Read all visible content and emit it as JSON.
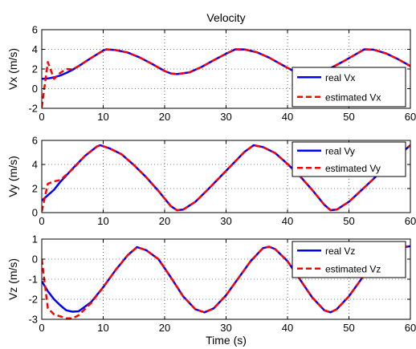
{
  "chart_data": [
    {
      "type": "line",
      "title": "Velocity",
      "xlabel": "",
      "ylabel": "Vx (m/s)",
      "xlim": [
        0,
        60
      ],
      "ylim": [
        -2,
        6
      ],
      "xticks": [
        "0",
        "10",
        "20",
        "30",
        "40",
        "50",
        "60"
      ],
      "yticks": [
        "-2",
        "0",
        "2",
        "4",
        "6"
      ],
      "grid": true,
      "legend_position": "bottom-right",
      "x": [
        0,
        1,
        2,
        3,
        4,
        5,
        6,
        8,
        10,
        10.5,
        12,
        14,
        16,
        18,
        20,
        21,
        22,
        24,
        26,
        28,
        30,
        31.5,
        33,
        35,
        37,
        39,
        41,
        42,
        43,
        45,
        47,
        49,
        51,
        52.5,
        54,
        56,
        58,
        60
      ],
      "series": [
        {
          "name": "real Vx",
          "color": "#0000ff",
          "style": "solid",
          "values": [
            1.0,
            1.04,
            1.15,
            1.34,
            1.6,
            1.92,
            2.29,
            3.11,
            3.88,
            4.0,
            3.93,
            3.67,
            3.16,
            2.5,
            1.8,
            1.55,
            1.48,
            1.65,
            2.2,
            2.9,
            3.55,
            4.0,
            3.99,
            3.71,
            3.16,
            2.46,
            1.78,
            1.52,
            1.45,
            1.6,
            2.08,
            2.74,
            3.45,
            4.0,
            3.97,
            3.6,
            3.0,
            2.3
          ]
        },
        {
          "name": "estimated Vx",
          "color": "#ff0000",
          "style": "dashed",
          "values": [
            -1.9,
            2.7,
            1.0,
            1.6,
            2.0,
            1.95,
            2.3,
            3.11,
            3.88,
            4.0,
            3.93,
            3.67,
            3.16,
            2.5,
            1.8,
            1.55,
            1.48,
            1.65,
            2.2,
            2.9,
            3.55,
            4.0,
            3.99,
            3.71,
            3.16,
            2.46,
            1.78,
            1.52,
            1.45,
            1.6,
            2.08,
            2.74,
            3.45,
            4.0,
            3.97,
            3.6,
            3.0,
            2.3
          ]
        }
      ]
    },
    {
      "type": "line",
      "title": "",
      "xlabel": "",
      "ylabel": "Vy (m/s)",
      "xlim": [
        0,
        60
      ],
      "ylim": [
        0,
        6
      ],
      "xticks": [
        "0",
        "10",
        "20",
        "30",
        "40",
        "50",
        "60"
      ],
      "yticks": [
        "0",
        "2",
        "4",
        "6"
      ],
      "grid": true,
      "legend_position": "top-right",
      "x": [
        0,
        1,
        2,
        3,
        5,
        7,
        9,
        9.5,
        11,
        13,
        15,
        17,
        19,
        21,
        22,
        23,
        25,
        27,
        29,
        31,
        33,
        34.5,
        36,
        38,
        40,
        42,
        44,
        46,
        47,
        48,
        50,
        52,
        54,
        56,
        58,
        60
      ],
      "series": [
        {
          "name": "real Vy",
          "color": "#0000ff",
          "style": "solid",
          "values": [
            1.0,
            1.45,
            1.9,
            2.55,
            3.65,
            4.7,
            5.5,
            5.6,
            5.35,
            4.85,
            3.95,
            2.95,
            1.8,
            0.55,
            0.2,
            0.25,
            0.9,
            1.9,
            2.95,
            4.0,
            5.05,
            5.6,
            5.45,
            4.95,
            4.05,
            3.05,
            1.9,
            0.65,
            0.2,
            0.25,
            0.9,
            1.85,
            2.8,
            3.85,
            4.7,
            5.6
          ]
        },
        {
          "name": "estimated Vy",
          "color": "#ff0000",
          "style": "dashed",
          "values": [
            0.1,
            2.4,
            2.6,
            2.7,
            3.6,
            4.7,
            5.5,
            5.6,
            5.35,
            4.85,
            3.95,
            2.95,
            1.8,
            0.55,
            0.2,
            0.25,
            0.9,
            1.9,
            2.95,
            4.0,
            5.05,
            5.6,
            5.45,
            4.95,
            4.05,
            3.05,
            1.9,
            0.65,
            0.2,
            0.25,
            0.9,
            1.85,
            2.8,
            3.85,
            4.7,
            5.6
          ]
        }
      ]
    },
    {
      "type": "line",
      "title": "",
      "xlabel": "Time (s)",
      "ylabel": "Vz (m/s)",
      "xlim": [
        0,
        60
      ],
      "ylim": [
        -3,
        1
      ],
      "xticks": [
        "0",
        "10",
        "20",
        "30",
        "40",
        "50",
        "60"
      ],
      "yticks": [
        "-3",
        "-2",
        "-1",
        "0",
        "1"
      ],
      "grid": true,
      "legend_position": "top-right",
      "x": [
        0,
        1,
        2,
        3,
        4,
        5,
        6,
        8,
        10,
        12,
        14,
        15.5,
        17,
        19,
        21,
        23,
        25,
        26.5,
        28,
        30,
        32,
        34,
        36,
        37,
        38,
        40,
        42,
        44,
        46,
        47,
        48,
        50,
        52,
        54,
        56,
        58,
        60
      ],
      "series": [
        {
          "name": "real Vz",
          "color": "#0000ff",
          "style": "solid",
          "values": [
            -1.1,
            -1.6,
            -2.0,
            -2.3,
            -2.55,
            -2.62,
            -2.6,
            -2.15,
            -1.4,
            -0.55,
            0.2,
            0.6,
            0.45,
            0.0,
            -0.9,
            -1.85,
            -2.5,
            -2.65,
            -2.45,
            -1.8,
            -0.95,
            -0.1,
            0.55,
            0.62,
            0.5,
            -0.1,
            -1.0,
            -1.9,
            -2.55,
            -2.65,
            -2.5,
            -1.85,
            -1.0,
            -0.25,
            0.3,
            0.55,
            0.65
          ]
        },
        {
          "name": "estimated Vz",
          "color": "#ff0000",
          "style": "dashed",
          "values": [
            0.0,
            -2.45,
            -2.75,
            -2.85,
            -2.95,
            -2.95,
            -2.8,
            -2.2,
            -1.4,
            -0.55,
            0.2,
            0.6,
            0.45,
            0.0,
            -0.9,
            -1.85,
            -2.5,
            -2.65,
            -2.45,
            -1.8,
            -0.95,
            -0.1,
            0.55,
            0.62,
            0.5,
            -0.1,
            -1.0,
            -1.9,
            -2.55,
            -2.65,
            -2.5,
            -1.85,
            -1.0,
            -0.25,
            0.3,
            0.55,
            0.65
          ]
        }
      ]
    }
  ]
}
